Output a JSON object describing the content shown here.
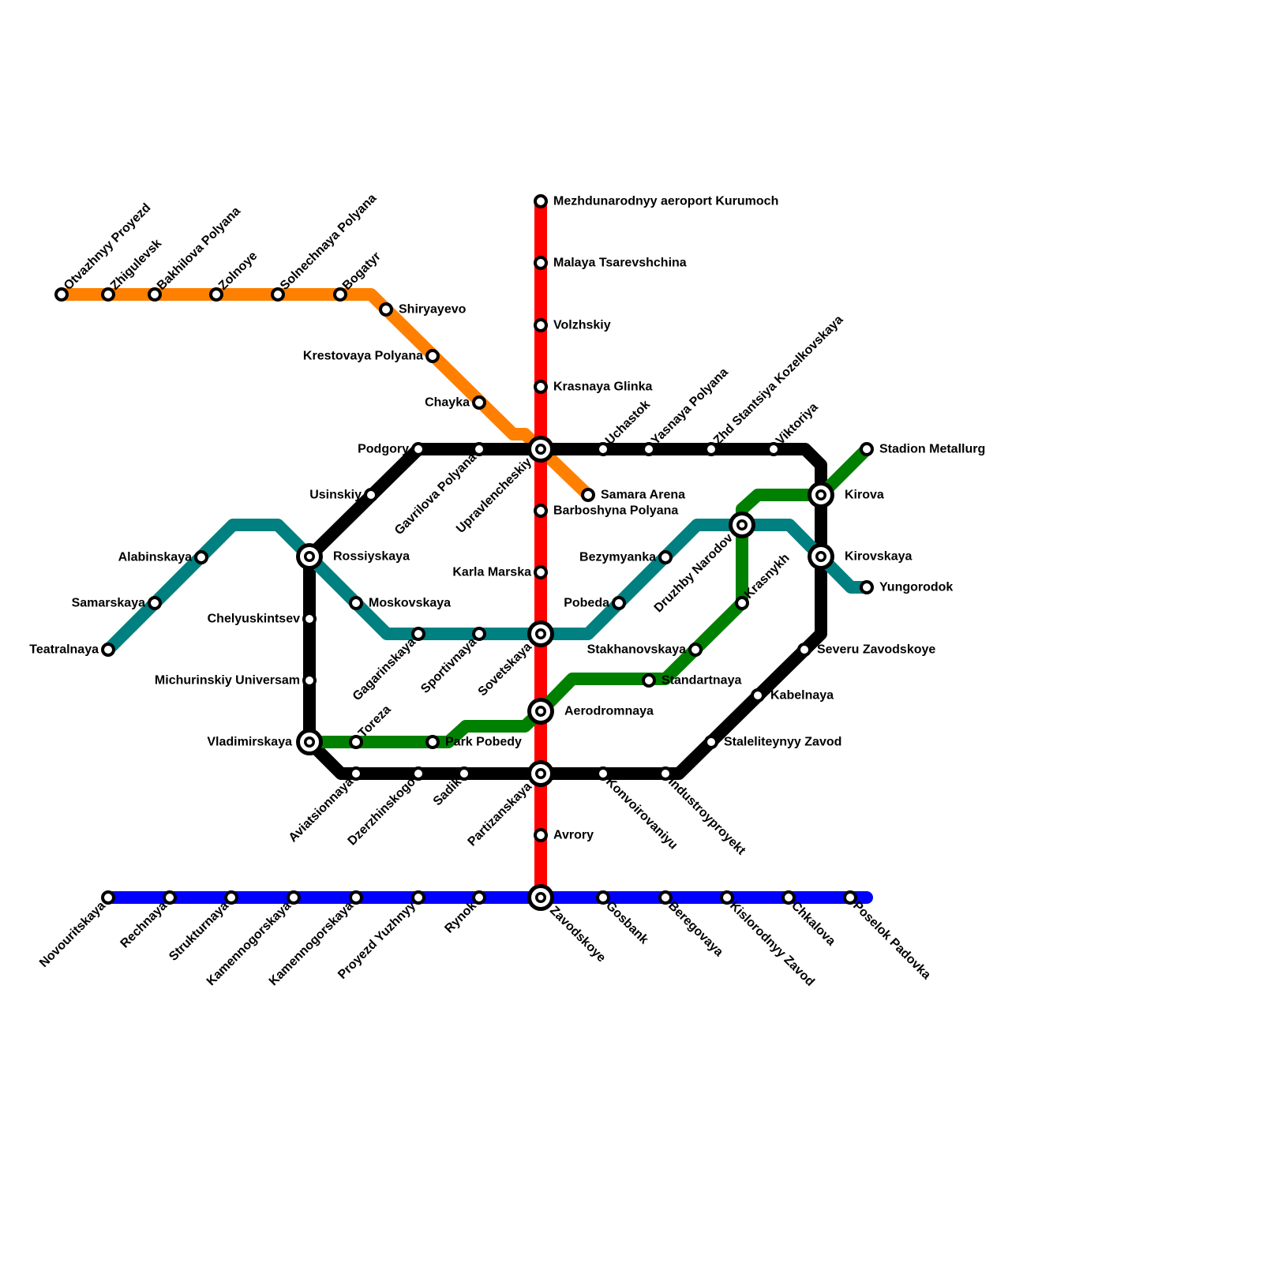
{
  "lines": [
    {
      "id": "orange",
      "color": "#ff8000"
    },
    {
      "id": "red",
      "color": "#ff0000"
    },
    {
      "id": "black",
      "color": "#000000"
    },
    {
      "id": "teal",
      "color": "#008080"
    },
    {
      "id": "green",
      "color": "#008000"
    },
    {
      "id": "blue",
      "color": "#0000ff"
    }
  ],
  "stations": [
    "Otvazhnyy Proyezd",
    "Zhigulevsk",
    "Bakhilova Polyana",
    "Zolnoye",
    "Solnechnaya Polyana",
    "Bogatyr",
    "Shiryayevo",
    "Krestovaya Polyana",
    "Chayka",
    "Samara Arena",
    "Mezhdunarodnyy aeroport Kurumoch",
    "Malaya Tsarevshchina",
    "Volzhskiy",
    "Krasnaya Glinka",
    "Upravlencheskiy",
    "Barboshyna Polyana",
    "Karla Marska",
    "Sovetskaya",
    "Aerodromnaya",
    "Partizanskaya",
    "Avrory",
    "Zavodskoye",
    "Rossiyskaya",
    "Usinskiy",
    "Podgory",
    "Gavrilova Polyana",
    "Uchastok",
    "Yasnaya Polyana",
    "Zhd Stantsiya Kozelkovskaya",
    "Viktoriya",
    "Kirova",
    "Kirovskaya",
    "Severu Zavodskoye",
    "Kabelnaya",
    "Staleliteynyy Zavod",
    "Industroyproyekt",
    "Konvoirovaniyu",
    "Sadik",
    "Dzerzhinskogo",
    "Aviatsionnaya",
    "Vladimirskaya",
    "Michurinskiy Universam",
    "Chelyuskintsev",
    "Teatralnaya",
    "Samarskaya",
    "Alabinskaya",
    "Moskovskaya",
    "Gagarinskaya",
    "Sportivnaya",
    "Pobeda",
    "Bezymyanka",
    "Druzhby Narodov",
    "Yungorodok",
    "Toreza",
    "Park Pobedy",
    "Standartnaya",
    "Stakhanovskaya",
    "Krasnykh",
    "Stadion Metallurg",
    "Novouritskaya",
    "Rechnaya",
    "Strukturnaya",
    "Kamennogorskaya",
    "Kamennogorskaya",
    "Proyezd Yuzhnyy",
    "Rynok",
    "Gosbank",
    "Beregovaya",
    "Kislorodnyy Zavod",
    "Chkalova",
    "Poselok Padovka"
  ]
}
